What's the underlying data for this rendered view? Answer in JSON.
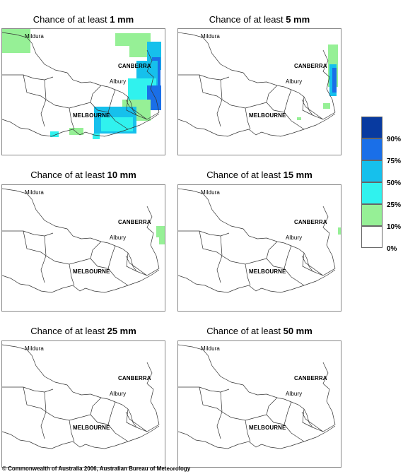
{
  "panels": [
    {
      "prefix": "Chance of at least",
      "amount": "1 mm"
    },
    {
      "prefix": "Chance of at least",
      "amount": "5 mm"
    },
    {
      "prefix": "Chance of at least",
      "amount": "10 mm"
    },
    {
      "prefix": "Chance of at least",
      "amount": "15 mm"
    },
    {
      "prefix": "Chance of at least",
      "amount": "25 mm"
    },
    {
      "prefix": "Chance of at least",
      "amount": "50 mm"
    }
  ],
  "cities": {
    "mildura": "Mildura",
    "canberra": "CANBERRA",
    "albury": "Albury",
    "melbourne": "MELBOURNE"
  },
  "legend": {
    "labels": [
      "90%",
      "75%",
      "50%",
      "25%",
      "10%",
      "0%"
    ],
    "colors": [
      "#083aa0",
      "#1a6fe8",
      "#16c0ec",
      "#30f2ee",
      "#96f096",
      "#ffffff"
    ]
  },
  "copyright": "© Commonwealth of Australia 2006, Australian Bureau of Meteorology"
}
